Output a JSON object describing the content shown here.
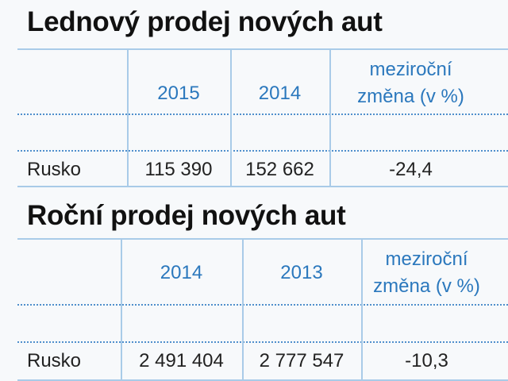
{
  "tables": [
    {
      "title": "Lednový prodej nových aut",
      "columns": [
        "2015",
        "2014"
      ],
      "change_label": [
        "meziroční",
        "změna (v %)"
      ],
      "rows": [
        [
          "Rusko",
          "115 390",
          "152 662",
          "-24,4"
        ]
      ]
    },
    {
      "title": "Roční prodej nových aut",
      "columns": [
        "2014",
        "2013"
      ],
      "change_label": [
        "meziroční",
        "změna (v %)"
      ],
      "rows": [
        [
          "Rusko",
          "2 491 404",
          "2 777 547",
          "-10,3"
        ]
      ]
    }
  ]
}
